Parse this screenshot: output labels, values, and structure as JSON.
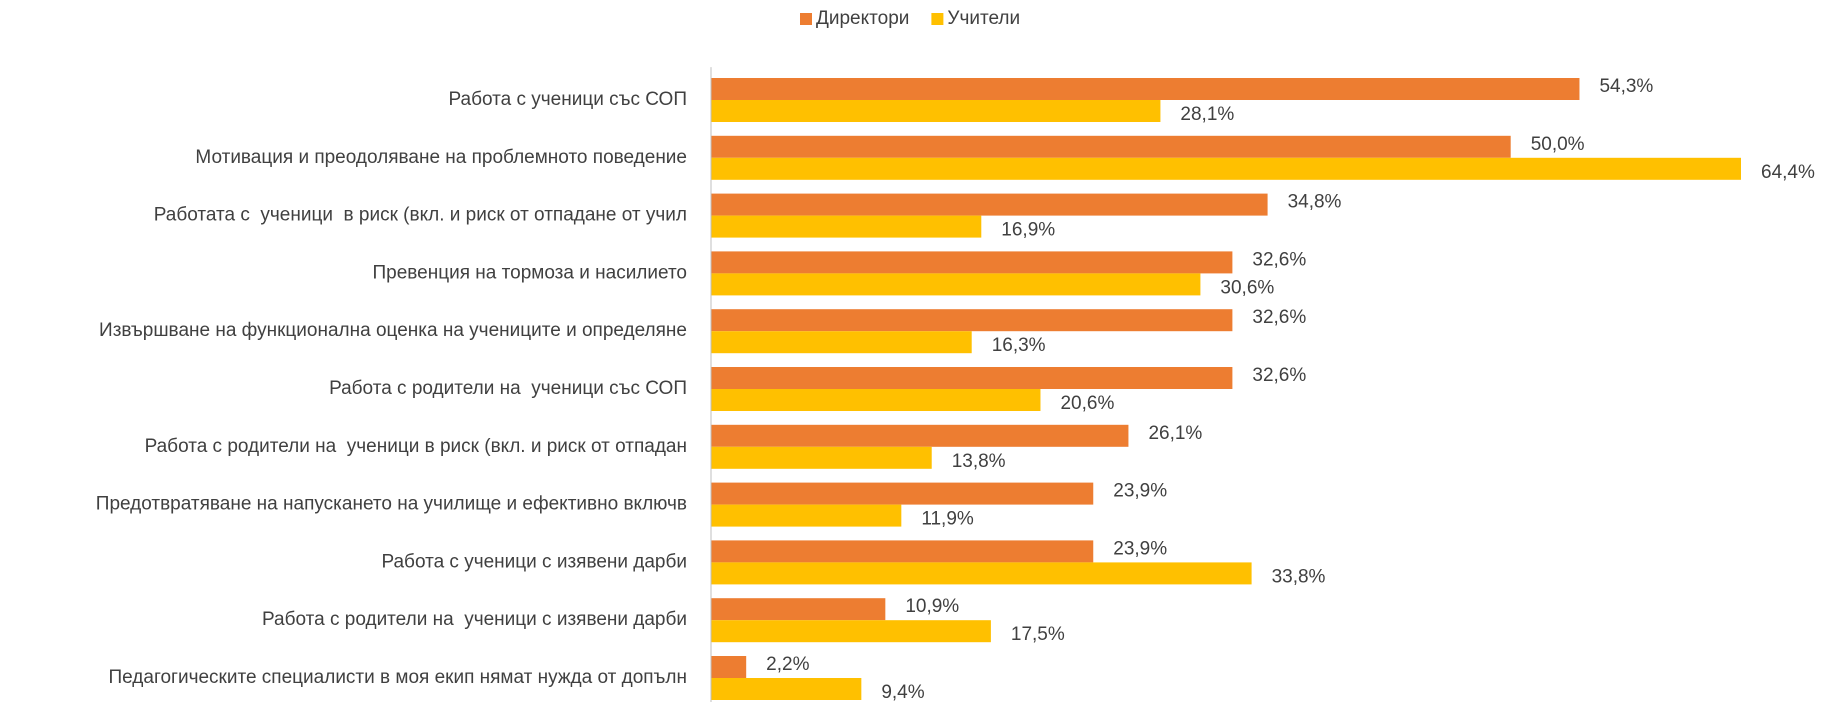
{
  "chart_data": {
    "type": "bar",
    "orientation": "horizontal",
    "categories": [
      "Работа с ученици със СОП",
      "Мотивация и преодоляване на проблемното поведение",
      "Работата с  ученици  в риск (вкл. и риск от отпадане от учил",
      "Превенция на тормоза и насилието",
      "Извършване на функционална оценка на учениците и определяне",
      "Работа с родители на  ученици със СОП",
      "Работа с родители на  ученици в риск (вкл. и риск от отпадан",
      "Предотвратяване на напускането на училище и ефективно включв",
      "Работа с ученици с изявени дарби",
      "Работа с родители на  ученици с изявени дарби",
      "Педагогическите специалисти в моя екип нямат нужда от допълн"
    ],
    "series": [
      {
        "name": "Директори",
        "color": "#ED7D31",
        "values": [
          54.3,
          50.0,
          34.8,
          32.6,
          32.6,
          32.6,
          26.1,
          23.9,
          23.9,
          10.9,
          2.2
        ],
        "value_labels": [
          "54,3%",
          "50,0%",
          "34,8%",
          "32,6%",
          "32,6%",
          "32,6%",
          "26,1%",
          "23,9%",
          "23,9%",
          "10,9%",
          "2,2%"
        ]
      },
      {
        "name": "Учители",
        "color": "#FFC000",
        "values": [
          28.1,
          64.4,
          16.9,
          30.6,
          16.3,
          20.6,
          13.8,
          11.9,
          33.8,
          17.5,
          9.4
        ],
        "value_labels": [
          "28,1%",
          "64,4%",
          "16,9%",
          "30,6%",
          "16,3%",
          "20,6%",
          "13,8%",
          "11,9%",
          "33,8%",
          "17,5%",
          "9,4%"
        ]
      }
    ],
    "legend": "top"
  }
}
